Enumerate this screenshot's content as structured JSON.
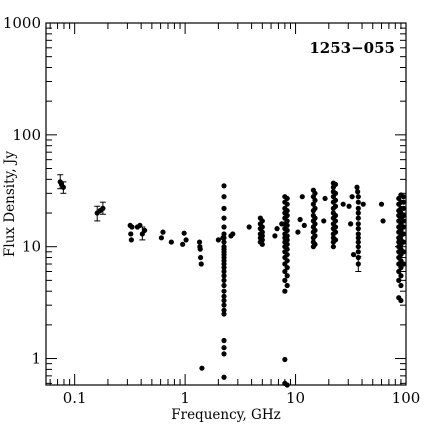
{
  "chart_data": {
    "type": "scatter",
    "title": "1253−055",
    "xlabel": "Frequency, GHz",
    "ylabel": "Flux Density, Jy",
    "xscale": "log",
    "yscale": "log",
    "xlim": [
      0.055,
      100
    ],
    "ylim": [
      0.58,
      1000
    ],
    "grid": false,
    "legend": "none",
    "marker_color": "#000000",
    "x_tick_labels": [
      {
        "value": 0.1,
        "label": "0.1"
      },
      {
        "value": 1,
        "label": "1"
      },
      {
        "value": 10,
        "label": "10"
      },
      {
        "value": 100,
        "label": "100"
      }
    ],
    "y_tick_labels": [
      {
        "value": 1,
        "label": "1"
      },
      {
        "value": 10,
        "label": "10"
      },
      {
        "value": 100,
        "label": "100"
      },
      {
        "value": 1000,
        "label": "1000"
      }
    ],
    "points": [
      [
        0.074,
        38
      ],
      [
        0.076,
        36
      ],
      [
        0.079,
        34
      ],
      [
        0.16,
        20
      ],
      [
        0.17,
        21
      ],
      [
        0.18,
        22
      ],
      [
        0.318,
        15.5
      ],
      [
        0.322,
        13
      ],
      [
        0.326,
        11.5
      ],
      [
        0.33,
        15
      ],
      [
        0.37,
        15
      ],
      [
        0.39,
        15.5
      ],
      [
        0.41,
        13
      ],
      [
        0.43,
        14
      ],
      [
        0.61,
        12
      ],
      [
        0.63,
        13.5
      ],
      [
        0.75,
        11
      ],
      [
        0.95,
        10.5
      ],
      [
        0.98,
        13.2
      ],
      [
        1.02,
        11.5
      ],
      [
        1.35,
        11
      ],
      [
        1.36,
        10
      ],
      [
        1.37,
        9.5
      ],
      [
        1.38,
        8
      ],
      [
        1.4,
        7
      ],
      [
        1.42,
        0.82
      ],
      [
        2.0,
        11.5
      ],
      [
        2.2,
        12
      ],
      [
        2.25,
        35
      ],
      [
        2.25,
        28
      ],
      [
        2.25,
        22
      ],
      [
        2.25,
        18
      ],
      [
        2.25,
        15
      ],
      [
        2.25,
        13
      ],
      [
        2.25,
        12
      ],
      [
        2.25,
        11
      ],
      [
        2.25,
        10
      ],
      [
        2.25,
        9.5
      ],
      [
        2.25,
        9
      ],
      [
        2.25,
        8.5
      ],
      [
        2.25,
        8
      ],
      [
        2.25,
        7.5
      ],
      [
        2.25,
        7
      ],
      [
        2.25,
        6.5
      ],
      [
        2.25,
        6
      ],
      [
        2.25,
        5.5
      ],
      [
        2.25,
        5
      ],
      [
        2.25,
        4.5
      ],
      [
        2.25,
        4
      ],
      [
        2.25,
        3.6
      ],
      [
        2.25,
        3.3
      ],
      [
        2.25,
        3
      ],
      [
        2.25,
        2.7
      ],
      [
        2.25,
        2.5
      ],
      [
        2.25,
        1.45
      ],
      [
        2.25,
        1.25
      ],
      [
        2.25,
        1.1
      ],
      [
        2.25,
        0.68
      ],
      [
        2.6,
        12.5
      ],
      [
        2.7,
        13
      ],
      [
        3.8,
        15
      ],
      [
        4.8,
        18
      ],
      [
        4.8,
        16
      ],
      [
        4.8,
        14.5
      ],
      [
        4.8,
        13
      ],
      [
        4.8,
        12
      ],
      [
        4.8,
        11
      ],
      [
        5.0,
        17
      ],
      [
        5.0,
        15
      ],
      [
        5.0,
        13.5
      ],
      [
        5.0,
        12.5
      ],
      [
        5.0,
        11.5
      ],
      [
        5.0,
        10.5
      ],
      [
        6.5,
        12.5
      ],
      [
        6.8,
        14.5
      ],
      [
        7.5,
        16
      ],
      [
        8.0,
        28
      ],
      [
        8.0,
        25
      ],
      [
        8.0,
        22
      ],
      [
        8.0,
        20
      ],
      [
        8.0,
        18
      ],
      [
        8.0,
        16
      ],
      [
        8.0,
        14.5
      ],
      [
        8.0,
        13
      ],
      [
        8.0,
        12
      ],
      [
        8.0,
        11
      ],
      [
        8.0,
        10
      ],
      [
        8.0,
        9
      ],
      [
        8.0,
        8
      ],
      [
        8.0,
        7
      ],
      [
        8.0,
        6
      ],
      [
        8.0,
        5
      ],
      [
        8.0,
        4
      ],
      [
        8.0,
        0.98
      ],
      [
        8.0,
        0.6
      ],
      [
        8.4,
        27
      ],
      [
        8.4,
        24
      ],
      [
        8.4,
        21
      ],
      [
        8.4,
        19
      ],
      [
        8.4,
        17
      ],
      [
        8.4,
        15.5
      ],
      [
        8.4,
        14
      ],
      [
        8.4,
        12.5
      ],
      [
        8.4,
        11.5
      ],
      [
        8.4,
        10.5
      ],
      [
        8.4,
        9.5
      ],
      [
        8.4,
        8.5
      ],
      [
        8.4,
        7.5
      ],
      [
        8.4,
        6.5
      ],
      [
        8.4,
        5.5
      ],
      [
        8.4,
        4.5
      ],
      [
        8.4,
        0.58
      ],
      [
        10.5,
        13.5
      ],
      [
        11.0,
        17.5
      ],
      [
        11.5,
        28
      ],
      [
        12.0,
        15.5
      ],
      [
        14.5,
        32
      ],
      [
        14.5,
        28
      ],
      [
        14.5,
        24
      ],
      [
        14.5,
        21
      ],
      [
        14.5,
        19
      ],
      [
        14.5,
        17
      ],
      [
        14.5,
        15
      ],
      [
        14.5,
        13.5
      ],
      [
        14.5,
        12
      ],
      [
        14.5,
        11
      ],
      [
        14.5,
        10
      ],
      [
        15.0,
        30
      ],
      [
        15.0,
        26
      ],
      [
        15.0,
        22
      ],
      [
        15.0,
        18
      ],
      [
        15.0,
        16
      ],
      [
        15.0,
        14
      ],
      [
        15.0,
        12.5
      ],
      [
        15.0,
        10.5
      ],
      [
        18.0,
        17
      ],
      [
        18.5,
        27
      ],
      [
        22.0,
        37
      ],
      [
        22.0,
        34
      ],
      [
        22.0,
        31
      ],
      [
        22.0,
        28
      ],
      [
        22.0,
        25
      ],
      [
        22.0,
        22
      ],
      [
        22.0,
        20
      ],
      [
        22.0,
        18
      ],
      [
        22.0,
        16
      ],
      [
        22.0,
        14.5
      ],
      [
        22.0,
        13
      ],
      [
        22.0,
        12
      ],
      [
        22.0,
        11
      ],
      [
        22.0,
        10
      ],
      [
        23.0,
        36
      ],
      [
        23.0,
        30
      ],
      [
        23.0,
        26
      ],
      [
        23.0,
        23
      ],
      [
        23.0,
        19
      ],
      [
        23.0,
        17
      ],
      [
        23.0,
        15
      ],
      [
        23.0,
        13.5
      ],
      [
        23.0,
        11.5
      ],
      [
        27.0,
        24
      ],
      [
        30.5,
        23
      ],
      [
        31.5,
        16
      ],
      [
        32.5,
        28
      ],
      [
        33.5,
        8.5
      ],
      [
        36.0,
        34
      ],
      [
        36.5,
        31
      ],
      [
        37.0,
        28
      ],
      [
        37.0,
        25
      ],
      [
        37.0,
        22
      ],
      [
        37.0,
        20
      ],
      [
        37.0,
        18
      ],
      [
        37.0,
        16
      ],
      [
        37.0,
        14.5
      ],
      [
        37.0,
        13
      ],
      [
        37.0,
        12
      ],
      [
        37.0,
        11
      ],
      [
        37.0,
        10
      ],
      [
        37.0,
        9
      ],
      [
        37.0,
        8
      ],
      [
        37.0,
        7
      ],
      [
        41.0,
        24
      ],
      [
        60.0,
        24
      ],
      [
        62.0,
        17
      ],
      [
        86.0,
        27
      ],
      [
        86.0,
        24
      ],
      [
        86.0,
        21
      ],
      [
        86.0,
        19
      ],
      [
        86.0,
        17
      ],
      [
        86.0,
        15
      ],
      [
        86.0,
        13.5
      ],
      [
        86.0,
        12
      ],
      [
        86.0,
        11
      ],
      [
        86.0,
        10
      ],
      [
        86.0,
        9
      ],
      [
        86.0,
        8
      ],
      [
        86.0,
        7
      ],
      [
        86.0,
        6
      ],
      [
        86.0,
        5
      ],
      [
        86.0,
        3.5
      ],
      [
        90.0,
        29
      ],
      [
        90.0,
        25
      ],
      [
        90.0,
        22
      ],
      [
        90.0,
        20
      ],
      [
        90.0,
        18
      ],
      [
        90.0,
        16
      ],
      [
        90.0,
        14
      ],
      [
        90.0,
        12.5
      ],
      [
        90.0,
        11.5
      ],
      [
        90.0,
        10.5
      ],
      [
        90.0,
        9.5
      ],
      [
        90.0,
        8.5
      ],
      [
        90.0,
        7.5
      ],
      [
        90.0,
        6.5
      ],
      [
        90.0,
        5.5
      ],
      [
        90.0,
        4.5
      ],
      [
        90.0,
        3.3
      ],
      [
        95.0,
        28
      ],
      [
        95.0,
        25
      ],
      [
        95.0,
        22
      ],
      [
        95.0,
        19
      ],
      [
        95.0,
        17
      ],
      [
        95.0,
        15
      ],
      [
        95.0,
        13
      ],
      [
        95.0,
        11
      ],
      [
        95.0,
        9
      ],
      [
        95.0,
        7
      ]
    ],
    "error_bars": [
      [
        0.074,
        38,
        33,
        44
      ],
      [
        0.079,
        34,
        30,
        38
      ],
      [
        0.16,
        20,
        17,
        23
      ],
      [
        0.18,
        22,
        19.5,
        25
      ],
      [
        0.41,
        13,
        11.5,
        15
      ],
      [
        37.0,
        7,
        6.0,
        8.2
      ]
    ]
  }
}
